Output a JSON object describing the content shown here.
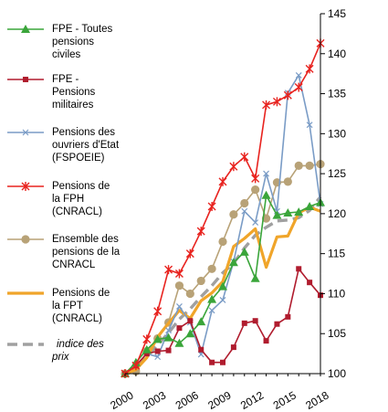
{
  "chart_data": {
    "type": "line",
    "title": "",
    "xlabel": "",
    "ylabel": "",
    "ylim": [
      100,
      145
    ],
    "y_ticks": [
      "100",
      "105",
      "110",
      "115",
      "120",
      "125",
      "130",
      "135",
      "140",
      "145"
    ],
    "x_range": [
      2000,
      2018
    ],
    "x_ticks": [
      "2000",
      "2003",
      "2006",
      "2009",
      "2012",
      "2015",
      "2018"
    ],
    "grid": false,
    "legend_position": "left",
    "series": [
      {
        "name": "FPE - Toutes pensions civiles",
        "color": "#3aa53a",
        "marker": "triangle",
        "x": [
          2000,
          2001,
          2002,
          2003,
          2004,
          2005,
          2006,
          2007,
          2008,
          2009,
          2010,
          2011,
          2012,
          2013,
          2014,
          2015,
          2016,
          2017,
          2018
        ],
        "y": [
          100.0,
          101.4,
          103.0,
          104.3,
          104.5,
          103.8,
          105.0,
          106.5,
          109.3,
          110.9,
          113.9,
          115.2,
          111.9,
          122.3,
          119.8,
          120.1,
          120.2,
          120.9,
          121.4
        ]
      },
      {
        "name": "FPE - Pensions militaires",
        "color": "#b01c2e",
        "marker": "square",
        "x": [
          2000,
          2001,
          2002,
          2003,
          2004,
          2005,
          2006,
          2007,
          2008,
          2009,
          2010,
          2011,
          2012,
          2013,
          2014,
          2015,
          2016,
          2017,
          2018
        ],
        "y": [
          100.0,
          101.0,
          102.5,
          102.8,
          102.9,
          105.7,
          106.6,
          103.0,
          101.4,
          101.4,
          103.3,
          106.3,
          106.6,
          104.1,
          106.2,
          107.1,
          113.1,
          111.4,
          109.8
        ]
      },
      {
        "name": "Pensions des ouvriers d'Etat (FSPOEIE)",
        "color": "#7a9cc6",
        "marker": "x",
        "x": [
          2000,
          2001,
          2002,
          2003,
          2004,
          2005,
          2006,
          2007,
          2008,
          2009,
          2010,
          2011,
          2012,
          2013,
          2014,
          2015,
          2016,
          2017,
          2018
        ],
        "y": [
          100.0,
          101.0,
          102.5,
          102.1,
          105.4,
          108.4,
          106.4,
          102.4,
          107.9,
          109.2,
          114.0,
          120.3,
          118.9,
          125.0,
          120.3,
          135.1,
          137.3,
          131.1,
          121.2
        ]
      },
      {
        "name": "Pensions de la FPH (CNRACL)",
        "color": "#e8231f",
        "marker": "star",
        "x": [
          2000,
          2001,
          2002,
          2003,
          2004,
          2005,
          2006,
          2007,
          2008,
          2009,
          2010,
          2011,
          2012,
          2013,
          2014,
          2015,
          2016,
          2017,
          2018
        ],
        "y": [
          100.0,
          101.0,
          104.3,
          107.8,
          113.0,
          112.5,
          115.0,
          117.8,
          120.9,
          124.0,
          125.9,
          127.1,
          124.4,
          133.6,
          134.0,
          134.8,
          135.8,
          138.1,
          141.3
        ]
      },
      {
        "name": "Ensemble des pensions de la CNRACL",
        "color": "#b8a277",
        "marker": "circle",
        "x": [
          2000,
          2001,
          2002,
          2003,
          2004,
          2005,
          2006,
          2007,
          2008,
          2009,
          2010,
          2011,
          2012,
          2013,
          2014,
          2015,
          2016,
          2017,
          2018
        ],
        "y": [
          100.0,
          100.3,
          102.8,
          104.4,
          106.4,
          111.0,
          110.0,
          111.6,
          113.1,
          116.5,
          119.9,
          121.3,
          123.0,
          119.4,
          123.9,
          124.0,
          126.0,
          126.0,
          126.2
        ]
      },
      {
        "name": "Pensions de la FPT (CNRACL)",
        "color": "#f0a52a",
        "marker": "none",
        "x": [
          2000,
          2001,
          2002,
          2003,
          2004,
          2005,
          2006,
          2007,
          2008,
          2009,
          2010,
          2011,
          2012,
          2013,
          2014,
          2015,
          2016,
          2017,
          2018
        ],
        "y": [
          100.0,
          100.5,
          102.0,
          104.6,
          106.3,
          107.9,
          106.9,
          109.1,
          110.1,
          111.5,
          115.9,
          116.9,
          118.1,
          113.3,
          117.1,
          117.2,
          120.1,
          120.8,
          120.3
        ]
      },
      {
        "name": "indice des prix",
        "color": "#a0a0a0",
        "marker": "none",
        "dashed": true,
        "x": [
          2000,
          2001,
          2002,
          2003,
          2004,
          2005,
          2006,
          2007,
          2008,
          2009,
          2010,
          2011,
          2012,
          2013,
          2014,
          2015,
          2016,
          2017,
          2018
        ],
        "y": [
          100.0,
          100.8,
          102.1,
          103.6,
          105.1,
          106.8,
          108.1,
          109.6,
          111.0,
          112.6,
          113.8,
          115.7,
          117.3,
          118.3,
          119.1,
          119.2,
          119.5,
          120.4,
          122.1
        ]
      }
    ]
  }
}
